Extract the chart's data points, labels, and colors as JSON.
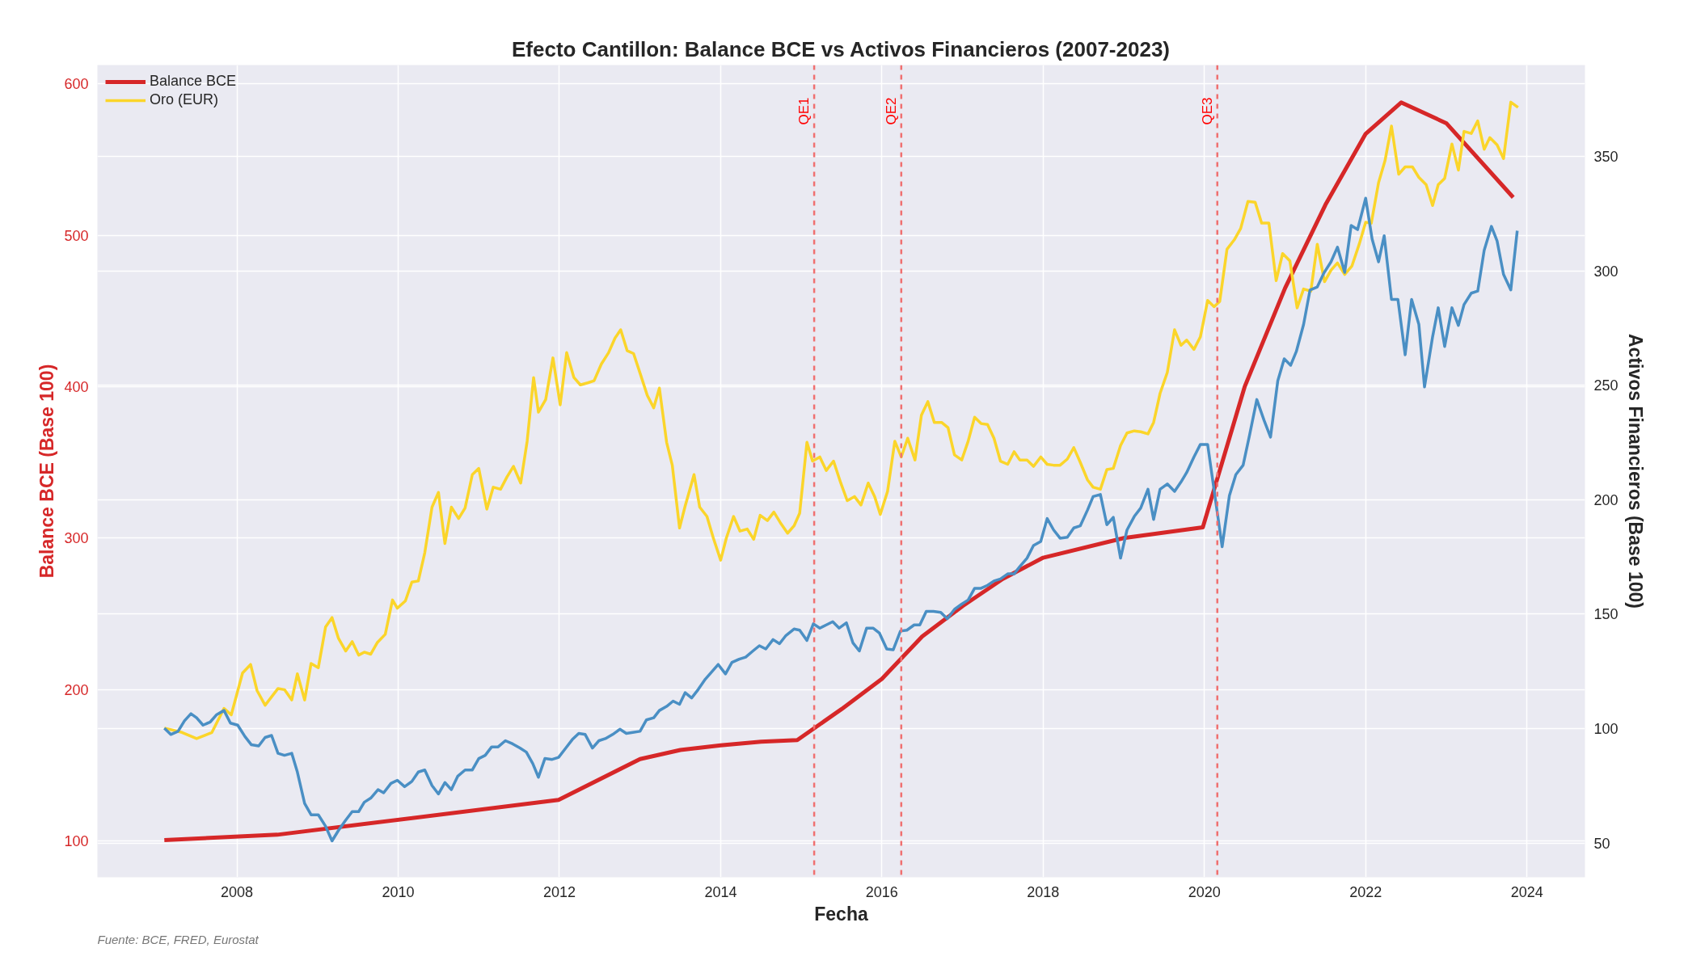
{
  "chart_data": {
    "type": "line",
    "title": "Efecto Cantillon: Balance BCE vs Activos Financieros (2007-2023)",
    "xlabel": "Fecha",
    "ylabel": "Balance BCE (Base 100)",
    "y2label": "Activos Financieros (Base 100)",
    "xlim": [
      2006.27,
      2024.72
    ],
    "xticks": [
      2008,
      2010,
      2012,
      2014,
      2016,
      2018,
      2020,
      2022,
      2024
    ],
    "ylim": [
      75.9,
      612.4
    ],
    "yticks": [
      100,
      200,
      300,
      400,
      500,
      600
    ],
    "y2lim": [
      35,
      390
    ],
    "y2ticks": [
      50,
      100,
      150,
      200,
      250,
      300,
      350
    ],
    "grid": true,
    "legend": "top left",
    "series": [
      {
        "name": "Balance BCE",
        "color": "#d62728",
        "axis": "y",
        "x": [
          2007.1,
          2008.5,
          2011.99,
          2013.0,
          2013.5,
          2014.0,
          2014.5,
          2014.95,
          2015.5,
          2016.0,
          2016.5,
          2017.0,
          2017.5,
          2018.0,
          2019.0,
          2019.98,
          2020.5,
          2021.0,
          2021.5,
          2022.0,
          2022.44,
          2023.0,
          2023.83
        ],
        "values": [
          100.5,
          104,
          127,
          154,
          160,
          163,
          165.5,
          166.5,
          187,
          207,
          235,
          255,
          273,
          287,
          300,
          307,
          400,
          465,
          520,
          567,
          587.7,
          574,
          525
        ]
      },
      {
        "name": "Oro (EUR)",
        "color": "#fbd52a",
        "axis": "y2",
        "x": [
          2007.1,
          2007.32,
          2007.5,
          2007.69,
          2007.84,
          2007.93,
          2008.07,
          2008.17,
          2008.25,
          2008.35,
          2008.51,
          2008.59,
          2008.68,
          2008.75,
          2008.84,
          2008.92,
          2009.01,
          2009.1,
          2009.18,
          2009.26,
          2009.35,
          2009.43,
          2009.51,
          2009.58,
          2009.66,
          2009.74,
          2009.84,
          2009.93,
          2009.99,
          2010.09,
          2010.17,
          2010.25,
          2010.33,
          2010.42,
          2010.5,
          2010.58,
          2010.66,
          2010.75,
          2010.83,
          2010.92,
          2011.0,
          2011.1,
          2011.18,
          2011.27,
          2011.35,
          2011.43,
          2011.52,
          2011.6,
          2011.68,
          2011.74,
          2011.83,
          2011.92,
          2012.01,
          2012.09,
          2012.18,
          2012.26,
          2012.35,
          2012.43,
          2012.52,
          2012.61,
          2012.69,
          2012.76,
          2012.84,
          2012.92,
          2013.01,
          2013.09,
          2013.17,
          2013.24,
          2013.33,
          2013.4,
          2013.49,
          2013.56,
          2013.67,
          2013.74,
          2013.83,
          2013.91,
          2014.0,
          2014.07,
          2014.16,
          2014.24,
          2014.33,
          2014.41,
          2014.49,
          2014.58,
          2014.66,
          2014.74,
          2014.83,
          2014.91,
          2014.98,
          2015.07,
          2015.14,
          2015.23,
          2015.31,
          2015.4,
          2015.49,
          2015.57,
          2015.66,
          2015.74,
          2015.83,
          2015.91,
          2015.98,
          2016.07,
          2016.16,
          2016.24,
          2016.32,
          2016.41,
          2016.49,
          2016.57,
          2016.65,
          2016.74,
          2016.82,
          2016.9,
          2016.99,
          2017.07,
          2017.15,
          2017.23,
          2017.31,
          2017.39,
          2017.47,
          2017.56,
          2017.64,
          2017.71,
          2017.8,
          2017.88,
          2017.97,
          2018.05,
          2018.13,
          2018.21,
          2018.3,
          2018.38,
          2018.46,
          2018.55,
          2018.62,
          2018.71,
          2018.79,
          2018.87,
          2018.96,
          2019.04,
          2019.13,
          2019.21,
          2019.3,
          2019.37,
          2019.45,
          2019.54,
          2019.63,
          2019.71,
          2019.78,
          2019.87,
          2019.95,
          2020.04,
          2020.12,
          2020.19,
          2020.28,
          2020.37,
          2020.45,
          2020.54,
          2020.63,
          2020.71,
          2020.8,
          2020.89,
          2020.97,
          2021.06,
          2021.15,
          2021.23,
          2021.32,
          2021.4,
          2021.49,
          2021.57,
          2021.65,
          2021.74,
          2021.83,
          2021.92,
          2022.0,
          2022.07,
          2022.16,
          2022.24,
          2022.32,
          2022.41,
          2022.49,
          2022.58,
          2022.66,
          2022.75,
          2022.83,
          2022.9,
          2022.98,
          2023.07,
          2023.15,
          2023.22,
          2023.31,
          2023.39,
          2023.47,
          2023.54,
          2023.63,
          2023.71,
          2023.8,
          2023.89
        ],
        "values": [
          100.2,
          98.3,
          95.6,
          98.3,
          108.8,
          106,
          124.3,
          128,
          116.6,
          110.2,
          117.5,
          117,
          112.5,
          123.9,
          112.5,
          128.4,
          126.6,
          144.4,
          148.5,
          139.4,
          133.9,
          138,
          132.1,
          133.4,
          132.5,
          137.5,
          141.2,
          156.2,
          152.6,
          155.8,
          164,
          164.5,
          176.8,
          196.8,
          203.2,
          180.9,
          196.8,
          191.8,
          196.4,
          211,
          213.7,
          195.9,
          205.5,
          204.6,
          210,
          214.6,
          207.3,
          225.6,
          253.4,
          238.3,
          243.8,
          262,
          241.5,
          264.3,
          253.4,
          250.2,
          251.1,
          252,
          259.3,
          264.3,
          270.7,
          274.3,
          265.2,
          263.9,
          254.3,
          245.6,
          240.2,
          248.8,
          225.1,
          215.1,
          187.7,
          197.3,
          211,
          196.8,
          192.7,
          183.2,
          173.6,
          183.2,
          192.7,
          186.3,
          187.2,
          182.7,
          193.2,
          190.9,
          194.6,
          190,
          185.4,
          188.6,
          194.1,
          225.1,
          216.9,
          218.7,
          212.8,
          216.9,
          207.3,
          199.6,
          201.4,
          197.7,
          207.3,
          201.4,
          193.6,
          203.7,
          225.6,
          218.7,
          226.9,
          217.4,
          237,
          242.9,
          233.8,
          233.8,
          231.5,
          219.6,
          217.4,
          225.6,
          236.1,
          233.3,
          232.9,
          226.9,
          216.9,
          215.5,
          221,
          217.4,
          217.4,
          214.6,
          218.7,
          215.5,
          215.1,
          215.1,
          217.8,
          222.8,
          216.4,
          208.7,
          205.5,
          204.6,
          213.2,
          213.7,
          223.7,
          229.2,
          230.1,
          229.7,
          228.8,
          233.8,
          246.5,
          255.7,
          274.3,
          267.5,
          269.8,
          265.7,
          271.2,
          287.1,
          284.4,
          286.7,
          309.5,
          313.6,
          318.6,
          330.4,
          330,
          320.9,
          320.9,
          295.8,
          307.6,
          304.4,
          283.9,
          292.1,
          291.2,
          311.7,
          295.3,
          300.3,
          303.5,
          298.5,
          302.2,
          311.7,
          321.3,
          320.9,
          338.6,
          348.2,
          363.3,
          342.3,
          345.5,
          345.5,
          340.9,
          337.7,
          328.6,
          337.7,
          340.5,
          355.5,
          344.1,
          361,
          360.1,
          365.6,
          353.2,
          358.3,
          355.1,
          349.1,
          373.8,
          371.5
        ]
      },
      {
        "color": "#4a8fc4",
        "axis": "y2",
        "x": [
          2007.1,
          2007.18,
          2007.27,
          2007.35,
          2007.43,
          2007.5,
          2007.58,
          2007.67,
          2007.75,
          2007.84,
          2007.92,
          2008.01,
          2008.1,
          2008.18,
          2008.27,
          2008.35,
          2008.43,
          2008.51,
          2008.59,
          2008.68,
          2008.75,
          2008.84,
          2008.92,
          2009.01,
          2009.1,
          2009.18,
          2009.26,
          2009.35,
          2009.43,
          2009.51,
          2009.58,
          2009.66,
          2009.75,
          2009.82,
          2009.91,
          2009.99,
          2010.08,
          2010.17,
          2010.25,
          2010.33,
          2010.42,
          2010.5,
          2010.58,
          2010.66,
          2010.74,
          2010.83,
          2010.92,
          2011.0,
          2011.08,
          2011.16,
          2011.24,
          2011.33,
          2011.42,
          2011.51,
          2011.59,
          2011.67,
          2011.74,
          2011.82,
          2011.91,
          2011.99,
          2012.08,
          2012.16,
          2012.24,
          2012.32,
          2012.41,
          2012.49,
          2012.57,
          2012.66,
          2012.75,
          2012.83,
          2012.91,
          2013.0,
          2013.08,
          2013.17,
          2013.24,
          2013.33,
          2013.41,
          2013.49,
          2013.56,
          2013.64,
          2013.72,
          2013.81,
          2013.9,
          2013.97,
          2014.06,
          2014.14,
          2014.23,
          2014.31,
          2014.4,
          2014.48,
          2014.56,
          2014.65,
          2014.73,
          2014.81,
          2014.91,
          2014.98,
          2015.07,
          2015.15,
          2015.23,
          2015.31,
          2015.39,
          2015.47,
          2015.56,
          2015.64,
          2015.72,
          2015.81,
          2015.89,
          2015.97,
          2016.06,
          2016.14,
          2016.23,
          2016.31,
          2016.4,
          2016.47,
          2016.55,
          2016.64,
          2016.73,
          2016.81,
          2016.9,
          2016.99,
          2017.07,
          2017.15,
          2017.23,
          2017.31,
          2017.39,
          2017.47,
          2017.56,
          2017.64,
          2017.71,
          2017.8,
          2017.88,
          2017.97,
          2018.05,
          2018.13,
          2018.21,
          2018.3,
          2018.38,
          2018.46,
          2018.55,
          2018.62,
          2018.71,
          2018.79,
          2018.87,
          2018.96,
          2019.04,
          2019.13,
          2019.21,
          2019.3,
          2019.37,
          2019.45,
          2019.54,
          2019.63,
          2019.71,
          2019.78,
          2019.87,
          2019.95,
          2020.04,
          2020.13,
          2020.22,
          2020.31,
          2020.39,
          2020.48,
          2020.56,
          2020.65,
          2020.74,
          2020.82,
          2020.91,
          2020.99,
          2021.07,
          2021.14,
          2021.23,
          2021.31,
          2021.4,
          2021.48,
          2021.57,
          2021.65,
          2021.74,
          2021.82,
          2021.9,
          2022.0,
          2022.08,
          2022.16,
          2022.23,
          2022.32,
          2022.4,
          2022.49,
          2022.57,
          2022.66,
          2022.73,
          2022.83,
          2022.9,
          2022.98,
          2023.07,
          2023.15,
          2023.22,
          2023.31,
          2023.39,
          2023.47,
          2023.56,
          2023.63,
          2023.71,
          2023.8,
          2023.88
        ],
        "values": [
          100.2,
          97.4,
          98.8,
          103.4,
          106.5,
          104.7,
          101.5,
          102.9,
          106.1,
          107.9,
          102.4,
          101.5,
          96.5,
          92.9,
          92.4,
          96.1,
          97,
          89.2,
          88.3,
          89.2,
          81,
          67.3,
          62.3,
          62.3,
          57.3,
          50.9,
          55.5,
          60,
          63.7,
          63.7,
          67.8,
          69.6,
          73.3,
          71.9,
          76,
          77.4,
          74.6,
          76.9,
          81,
          81.9,
          75.1,
          71.4,
          76.4,
          73.3,
          79.2,
          81.9,
          81.9,
          86.9,
          88.3,
          92,
          92,
          94.7,
          93.3,
          91.5,
          89.7,
          84.7,
          78.7,
          86.9,
          86.5,
          87.4,
          91.5,
          95.2,
          97.9,
          97.4,
          91.5,
          94.7,
          95.6,
          97.4,
          99.7,
          97.9,
          98.3,
          98.8,
          103.8,
          104.7,
          107.9,
          109.7,
          112,
          110.6,
          115.7,
          113.4,
          117,
          121.6,
          125.2,
          128,
          123.9,
          128.9,
          130.3,
          131.2,
          133.9,
          136.2,
          134.8,
          138.9,
          137.1,
          140.7,
          143.5,
          143,
          138.5,
          145.8,
          143.9,
          145.3,
          146.7,
          143.9,
          146.2,
          137.5,
          133.9,
          143.9,
          143.9,
          141.7,
          134.8,
          134.4,
          142.6,
          143,
          145.3,
          145.3,
          151.2,
          151.2,
          150.8,
          148,
          152.1,
          154.4,
          156.2,
          161.3,
          161.3,
          162.6,
          164.5,
          165.4,
          167.6,
          167.6,
          170.8,
          174.5,
          180,
          181.8,
          191.8,
          186.8,
          183.2,
          183.6,
          187.7,
          188.6,
          195.5,
          201.4,
          202.3,
          189.1,
          192.3,
          174.5,
          186.8,
          192.7,
          196.4,
          204.6,
          191.4,
          204.6,
          206.9,
          203.7,
          207.8,
          211.9,
          218.7,
          224.2,
          224.2,
          201.8,
          179.5,
          201.8,
          211,
          215.1,
          228.3,
          243.8,
          234.7,
          227.4,
          252,
          261.6,
          258.8,
          264.8,
          276.6,
          291.7,
          293,
          299,
          304,
          310.4,
          299.4,
          319.9,
          318.1,
          331.8,
          314,
          304,
          315.4,
          287.6,
          287.6,
          263.4,
          287.6,
          276.6,
          249.3,
          271.2,
          283.9,
          267,
          283.9,
          276.2,
          285.3,
          290.3,
          291.2,
          309,
          319.5,
          313.1,
          298.5,
          291.7,
          317.6
        ]
      }
    ],
    "ref_lines": [
      {
        "axis": "x",
        "value": 2015.16,
        "label": "QE1",
        "color": "#f07070",
        "line_style": "dashed"
      },
      {
        "axis": "x",
        "value": 2016.24,
        "label": "QE2",
        "color": "#f07070",
        "line_style": "dashed"
      },
      {
        "axis": "x",
        "value": 2020.16,
        "label": "QE3",
        "color": "#f07070",
        "line_style": "dashed"
      }
    ],
    "annotations": [
      "Fuente: BCE, FRED, Eurostat"
    ]
  }
}
